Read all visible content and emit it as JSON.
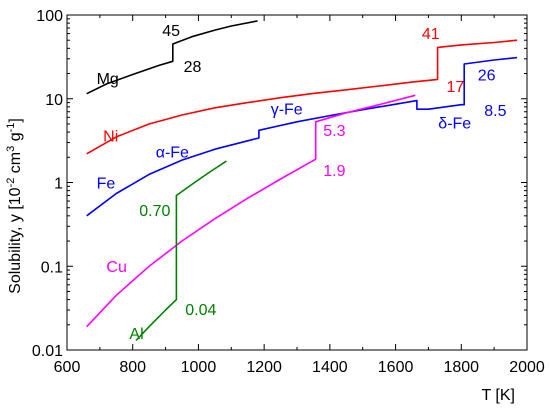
{
  "chart_data": {
    "type": "line",
    "xlabel": "T [K]",
    "ylabel": "Solubility, y [10",
    "ylabel_sup1": "-2",
    "ylabel_mid": " cm",
    "ylabel_sup2": "3",
    "ylabel_mid2": " g",
    "ylabel_sup3": "-1",
    "ylabel_end": "]",
    "xlim": [
      600,
      2000
    ],
    "ylim": [
      0.01,
      100
    ],
    "yscale": "log",
    "grid": false,
    "xticks": [
      600,
      800,
      1000,
      1200,
      1400,
      1600,
      1800,
      2000
    ],
    "xtick_labels": [
      "600",
      "800",
      "1000",
      "1200",
      "1400",
      "1600",
      "1800",
      "2000"
    ],
    "yticks": [
      0.01,
      0.1,
      1,
      10,
      100
    ],
    "ytick_labels": [
      "0.01",
      "0.1",
      "1",
      "10",
      "100"
    ],
    "series": [
      {
        "name": "Mg",
        "color": "#000000",
        "x": [
          660,
          720,
          800,
          880,
          922,
          922,
          980,
          1050,
          1100,
          1180
        ],
        "y": [
          11.5,
          15,
          19.5,
          25,
          28,
          45,
          55,
          66,
          74,
          85
        ]
      },
      {
        "name": "Ni",
        "color": "#ff0000",
        "x": [
          660,
          750,
          850,
          950,
          1050,
          1150,
          1250,
          1350,
          1450,
          1550,
          1650,
          1728,
          1728,
          1800,
          1900,
          1970
        ],
        "y": [
          2.2,
          3.5,
          5.0,
          6.4,
          7.8,
          9.0,
          10.3,
          11.6,
          12.8,
          14.2,
          15.8,
          17,
          41,
          44,
          47,
          50
        ]
      },
      {
        "name": "Fe",
        "color": "#0000ff",
        "x": [
          660,
          750,
          850,
          950,
          1050,
          1150,
          1184,
          1184,
          1300,
          1400,
          1500,
          1600,
          1665,
          1665,
          1700,
          1800,
          1809,
          1809,
          1900,
          1970
        ],
        "y": [
          0.4,
          0.74,
          1.25,
          1.85,
          2.5,
          3.15,
          3.4,
          4.2,
          5.3,
          6.3,
          7.4,
          8.6,
          9.5,
          7.5,
          7.5,
          8.5,
          8.5,
          26,
          29,
          31
        ]
      },
      {
        "name": "Cu",
        "color": "#ff00ff",
        "x": [
          660,
          750,
          850,
          950,
          1050,
          1150,
          1250,
          1357,
          1357,
          1450,
          1550,
          1660
        ],
        "y": [
          0.019,
          0.045,
          0.1,
          0.2,
          0.37,
          0.65,
          1.1,
          1.9,
          5.3,
          6.8,
          8.5,
          11
        ]
      },
      {
        "name": "Al",
        "color": "#008000",
        "x": [
          810,
          850,
          900,
          933,
          933,
          980,
          1030,
          1085
        ],
        "y": [
          0.013,
          0.019,
          0.03,
          0.04,
          0.7,
          0.95,
          1.3,
          1.8
        ]
      }
    ],
    "annotations": [
      {
        "text": "Mg",
        "x": 690,
        "y": 15,
        "color": "#000000"
      },
      {
        "text": "45",
        "x": 890,
        "y": 56,
        "color": "#000000"
      },
      {
        "text": "28",
        "x": 955,
        "y": 21,
        "color": "#000000"
      },
      {
        "text": "Ni",
        "x": 710,
        "y": 3.1,
        "color": "#ff0000"
      },
      {
        "text": "41",
        "x": 1680,
        "y": 52,
        "color": "#ff0000"
      },
      {
        "text": "17",
        "x": 1755,
        "y": 12,
        "color": "#ff0000"
      },
      {
        "text": "α-Fe",
        "x": 870,
        "y": 2.0,
        "color": "#0000ff"
      },
      {
        "text": "γ-Fe",
        "x": 1220,
        "y": 6.5,
        "color": "#0000ff"
      },
      {
        "text": "Fe",
        "x": 690,
        "y": 0.85,
        "color": "#0000ff"
      },
      {
        "text": "26",
        "x": 1850,
        "y": 16.5,
        "color": "#0000ff"
      },
      {
        "text": "δ-Fe",
        "x": 1730,
        "y": 4.4,
        "color": "#0000ff"
      },
      {
        "text": "8.5",
        "x": 1870,
        "y": 6.2,
        "color": "#0000ff"
      },
      {
        "text": "5.3",
        "x": 1380,
        "y": 3.6,
        "color": "#ff00ff"
      },
      {
        "text": "1.9",
        "x": 1380,
        "y": 1.2,
        "color": "#ff00ff"
      },
      {
        "text": "Cu",
        "x": 720,
        "y": 0.085,
        "color": "#ff00ff"
      },
      {
        "text": "0.70",
        "x": 820,
        "y": 0.4,
        "color": "#008000"
      },
      {
        "text": "0.04",
        "x": 960,
        "y": 0.026,
        "color": "#008000"
      },
      {
        "text": "Al",
        "x": 790,
        "y": 0.0135,
        "color": "#008000"
      }
    ]
  }
}
